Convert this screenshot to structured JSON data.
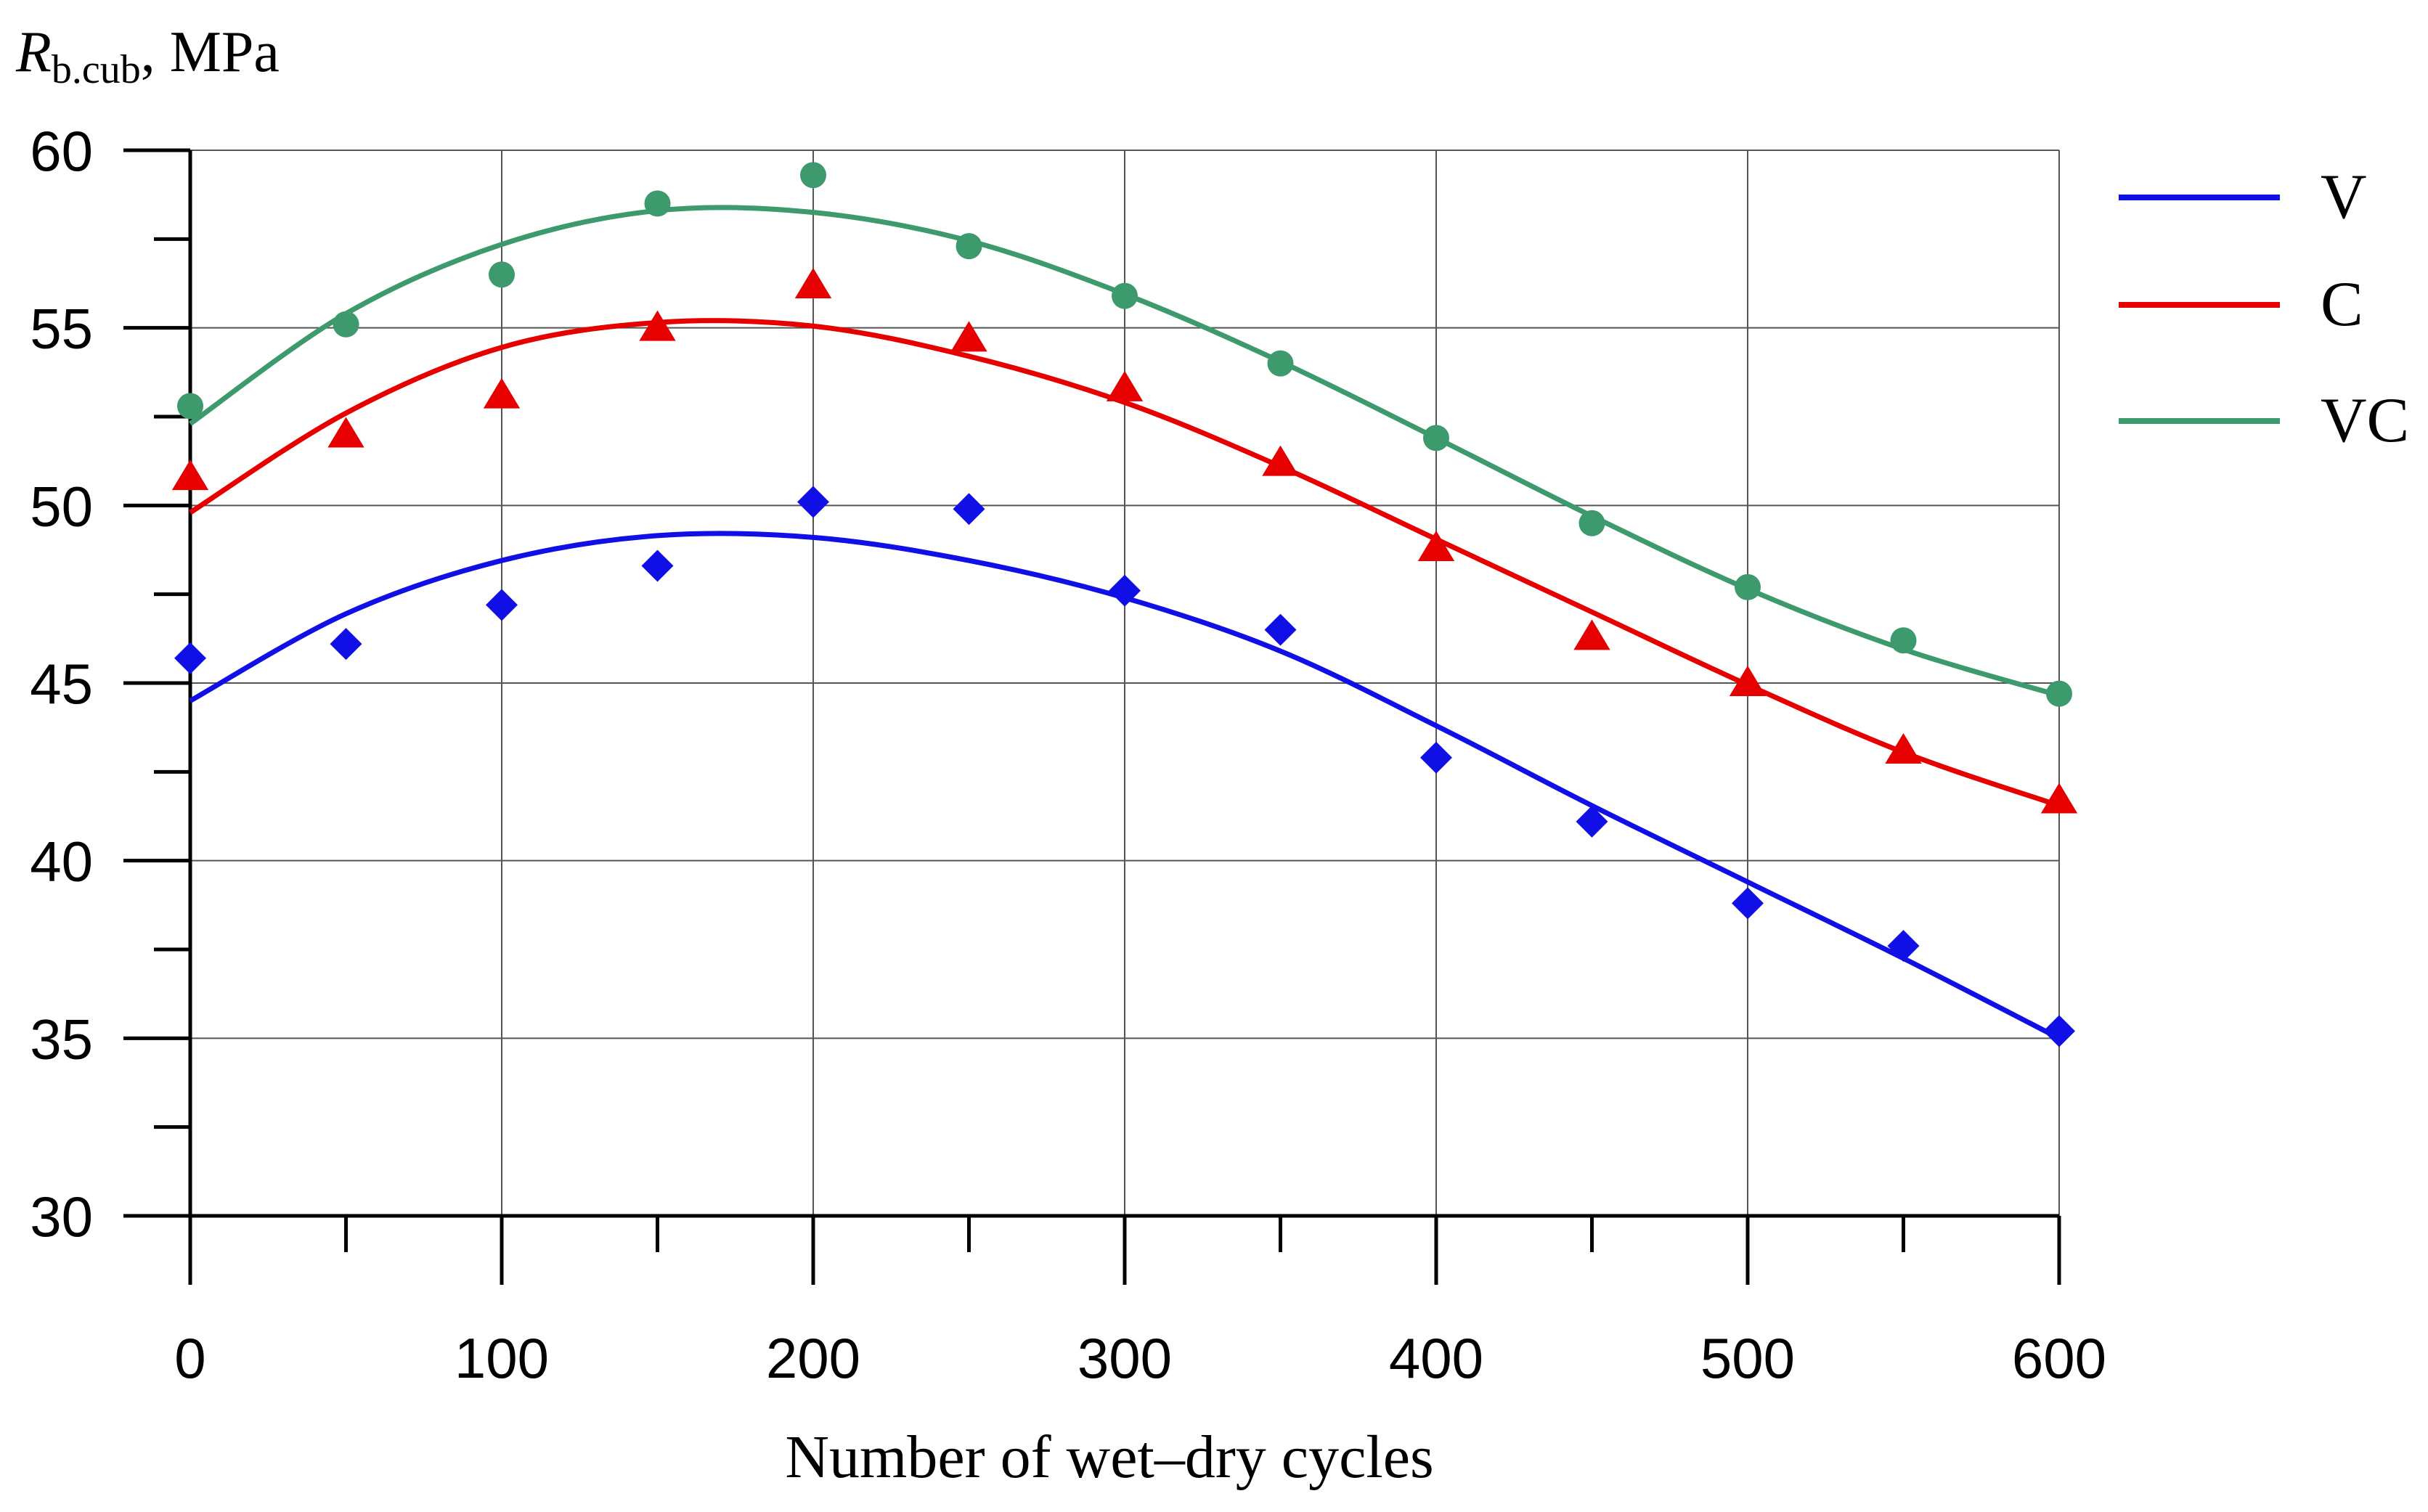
{
  "chart_data": {
    "type": "scatter",
    "title": "",
    "ylabel_main": "R",
    "ylabel_sub": "b.cub",
    "ylabel_unit": ", MPa",
    "xlabel": "Number of wet–dry cycles",
    "xlim": [
      0,
      600
    ],
    "ylim": [
      30,
      60
    ],
    "x_ticks": [
      0,
      100,
      200,
      300,
      400,
      500,
      600
    ],
    "x_minor_ticks": [
      50,
      150,
      250,
      350,
      450,
      550
    ],
    "y_ticks": [
      30,
      35,
      40,
      45,
      50,
      55,
      60
    ],
    "y_minor_ticks": [
      32.5,
      37.5,
      42.5,
      47.5,
      52.5,
      57.5
    ],
    "grid": true,
    "legend_position": "right",
    "x": [
      0,
      50,
      100,
      150,
      200,
      250,
      300,
      350,
      400,
      450,
      500,
      550,
      600
    ],
    "series": [
      {
        "name": "V",
        "color": "#1010e6",
        "marker": "diamond",
        "values": [
          45.7,
          46.1,
          47.2,
          48.3,
          50.1,
          49.9,
          47.6,
          46.5,
          42.9,
          41.1,
          38.8,
          37.6,
          35.2
        ],
        "fit_values": [
          44.5,
          46.95,
          48.45,
          49.15,
          49.1,
          48.45,
          47.4,
          45.9,
          43.8,
          41.55,
          39.4,
          37.25,
          35.0
        ]
      },
      {
        "name": "C",
        "color": "#e60000",
        "marker": "triangle",
        "values": [
          50.8,
          52.0,
          53.1,
          55.0,
          56.2,
          54.7,
          53.3,
          51.2,
          48.8,
          46.3,
          45.0,
          43.1,
          41.7
        ],
        "fit_values": [
          49.8,
          52.6,
          54.45,
          55.15,
          55.05,
          54.2,
          52.9,
          51.1,
          49.05,
          47.0,
          44.95,
          43.05,
          41.55
        ]
      },
      {
        "name": "VC",
        "color": "#3d9a6c",
        "marker": "circle",
        "values": [
          52.8,
          55.1,
          56.5,
          58.5,
          59.3,
          57.3,
          55.9,
          54.0,
          51.9,
          49.5,
          47.7,
          46.2,
          44.7
        ],
        "fit_values": [
          52.3,
          55.4,
          57.35,
          58.3,
          58.25,
          57.45,
          55.95,
          54.05,
          51.9,
          49.7,
          47.65,
          45.95,
          44.65
        ]
      }
    ]
  }
}
